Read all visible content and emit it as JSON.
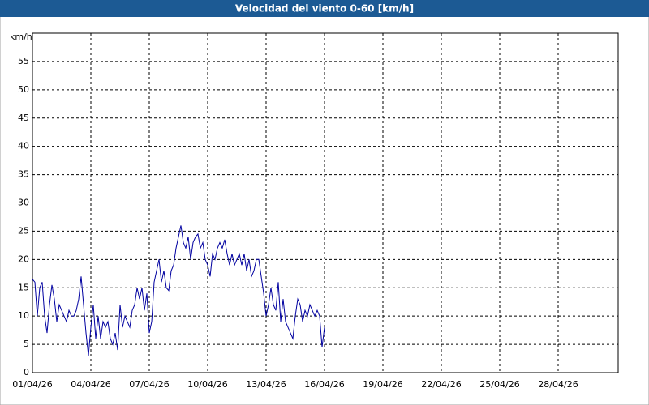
{
  "chart_data": {
    "type": "line",
    "title": "Velocidad del viento 0-60 [km/h]",
    "y_label": "km/h",
    "color": "#0000a0",
    "grid": true,
    "x": [
      0,
      0.125,
      0.25,
      0.375,
      0.5,
      0.625,
      0.75,
      0.875,
      1,
      1.125,
      1.25,
      1.375,
      1.5,
      1.625,
      1.75,
      1.875,
      2,
      2.125,
      2.25,
      2.375,
      2.5,
      2.625,
      2.75,
      2.875,
      3,
      3.125,
      3.25,
      3.375,
      3.5,
      3.625,
      3.75,
      3.875,
      4,
      4.125,
      4.25,
      4.375,
      4.5,
      4.625,
      4.75,
      4.875,
      5,
      5.125,
      5.25,
      5.375,
      5.5,
      5.625,
      5.75,
      5.875,
      6,
      6.125,
      6.25,
      6.375,
      6.5,
      6.625,
      6.75,
      6.875,
      7,
      7.125,
      7.25,
      7.375,
      7.5,
      7.625,
      7.75,
      7.875,
      8,
      8.125,
      8.25,
      8.375,
      8.5,
      8.625,
      8.75,
      8.875,
      9,
      9.125,
      9.25,
      9.375,
      9.5,
      9.625,
      9.75,
      9.875,
      10,
      10.125,
      10.25,
      10.375,
      10.5,
      10.625,
      10.75,
      10.875,
      11,
      11.125,
      11.25,
      11.375,
      11.5,
      11.625,
      11.75,
      11.875,
      12,
      12.125,
      12.25,
      12.375,
      12.5,
      12.625,
      12.75,
      12.875,
      13,
      13.125,
      13.25,
      13.375,
      13.5,
      13.625,
      13.75,
      13.875,
      14,
      14.125,
      14.25,
      14.375,
      14.5,
      14.625,
      14.75,
      14.875,
      15
    ],
    "values": [
      16.5,
      16,
      10,
      15,
      16,
      10,
      7,
      12,
      15.5,
      13,
      9,
      12,
      11,
      10,
      9,
      11,
      10,
      10,
      11,
      13,
      17,
      12,
      7,
      3,
      8,
      12,
      6,
      10,
      6,
      9,
      8,
      9,
      6,
      5,
      7,
      4,
      12,
      8,
      10,
      9,
      8,
      11,
      12,
      15,
      13,
      15,
      11,
      14,
      7,
      9,
      16,
      18,
      20,
      16,
      18,
      15,
      14.5,
      18,
      19,
      22,
      24,
      26,
      23,
      22,
      24,
      20,
      23,
      24,
      24.5,
      22,
      23,
      20,
      19,
      17,
      21,
      20,
      22,
      23,
      22,
      23.5,
      21,
      19,
      21,
      19,
      20,
      21,
      19,
      21,
      18,
      20,
      17,
      18,
      20,
      20,
      17,
      14,
      10,
      12,
      15,
      12,
      11,
      16,
      9,
      13,
      9,
      8,
      7,
      6,
      10,
      13,
      12,
      9,
      11,
      10,
      12,
      11,
      10,
      11,
      10,
      4.5,
      8
    ],
    "xlim": [
      0,
      30
    ],
    "ylim": [
      0,
      60
    ],
    "xticks": [
      {
        "value": 0,
        "label": "01/04/26"
      },
      {
        "value": 3,
        "label": "04/04/26"
      },
      {
        "value": 6,
        "label": "07/04/26"
      },
      {
        "value": 9,
        "label": "10/04/26"
      },
      {
        "value": 12,
        "label": "13/04/26"
      },
      {
        "value": 15,
        "label": "16/04/26"
      },
      {
        "value": 18,
        "label": "19/04/26"
      },
      {
        "value": 21,
        "label": "22/04/26"
      },
      {
        "value": 24,
        "label": "25/04/26"
      },
      {
        "value": 27,
        "label": "28/04/26"
      }
    ],
    "yticks": [
      0,
      5,
      10,
      15,
      20,
      25,
      30,
      35,
      40,
      45,
      50,
      55
    ]
  }
}
